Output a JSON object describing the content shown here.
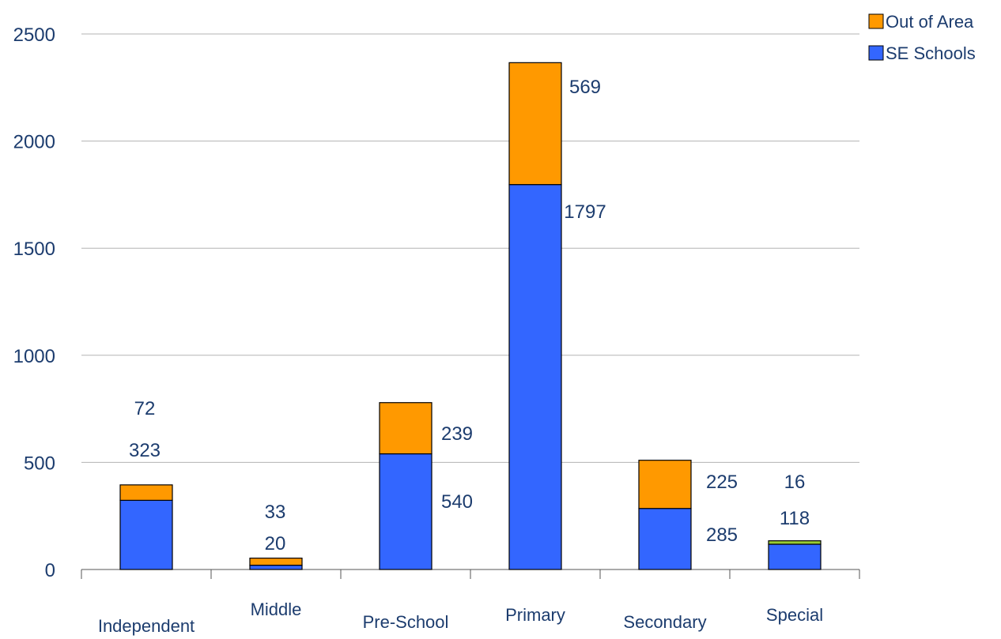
{
  "chart_data": {
    "type": "bar",
    "stacked": true,
    "categories": [
      "Independent",
      "Middle",
      "Pre-School",
      "Primary",
      "Secondary",
      "Special"
    ],
    "series": [
      {
        "name": "SE Schools",
        "values": [
          323,
          20,
          540,
          1797,
          285,
          118
        ],
        "color": "#3366ff"
      },
      {
        "name": "Out of Area",
        "values": [
          72,
          33,
          239,
          569,
          225,
          16
        ],
        "color": "#ff9900"
      }
    ],
    "ylim": [
      0,
      2500
    ],
    "yticks": [
      "0",
      "500",
      "1000",
      "1500",
      "2000",
      "2500"
    ],
    "grid": true,
    "legend": "top-right",
    "special_top_segment_color": "#99cc33",
    "title": "",
    "xlabel": "",
    "ylabel": ""
  }
}
